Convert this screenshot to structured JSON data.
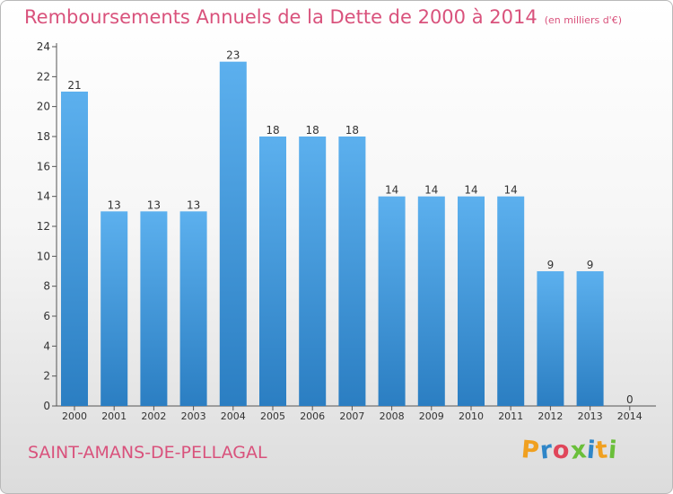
{
  "title": "Remboursements Annuels de la Dette de 2000 à 2014",
  "unit": "(en milliers d'€)",
  "commune": "SAINT-AMANS-DE-PELLAGAL",
  "logo": {
    "letters": [
      "P",
      "r",
      "o",
      "x",
      "i",
      "t",
      "i"
    ],
    "colors": [
      "#f0a020",
      "#2f86c8",
      "#e0465a",
      "#6abf3a",
      "#2f86c8",
      "#f0a020",
      "#6abf3a"
    ]
  },
  "colors": {
    "bar": "#4b9ee0",
    "title": "#d9527c"
  },
  "chart_data": {
    "type": "bar",
    "categories": [
      "2000",
      "2001",
      "2002",
      "2003",
      "2004",
      "2005",
      "2006",
      "2007",
      "2008",
      "2009",
      "2010",
      "2011",
      "2012",
      "2013",
      "2014"
    ],
    "values": [
      21,
      13,
      13,
      13,
      23,
      18,
      18,
      18,
      14,
      14,
      14,
      14,
      9,
      9,
      0
    ],
    "ylim": [
      0,
      24
    ],
    "yticks": [
      0,
      2,
      4,
      6,
      8,
      10,
      12,
      14,
      16,
      18,
      20,
      22,
      24
    ],
    "grid": false
  }
}
